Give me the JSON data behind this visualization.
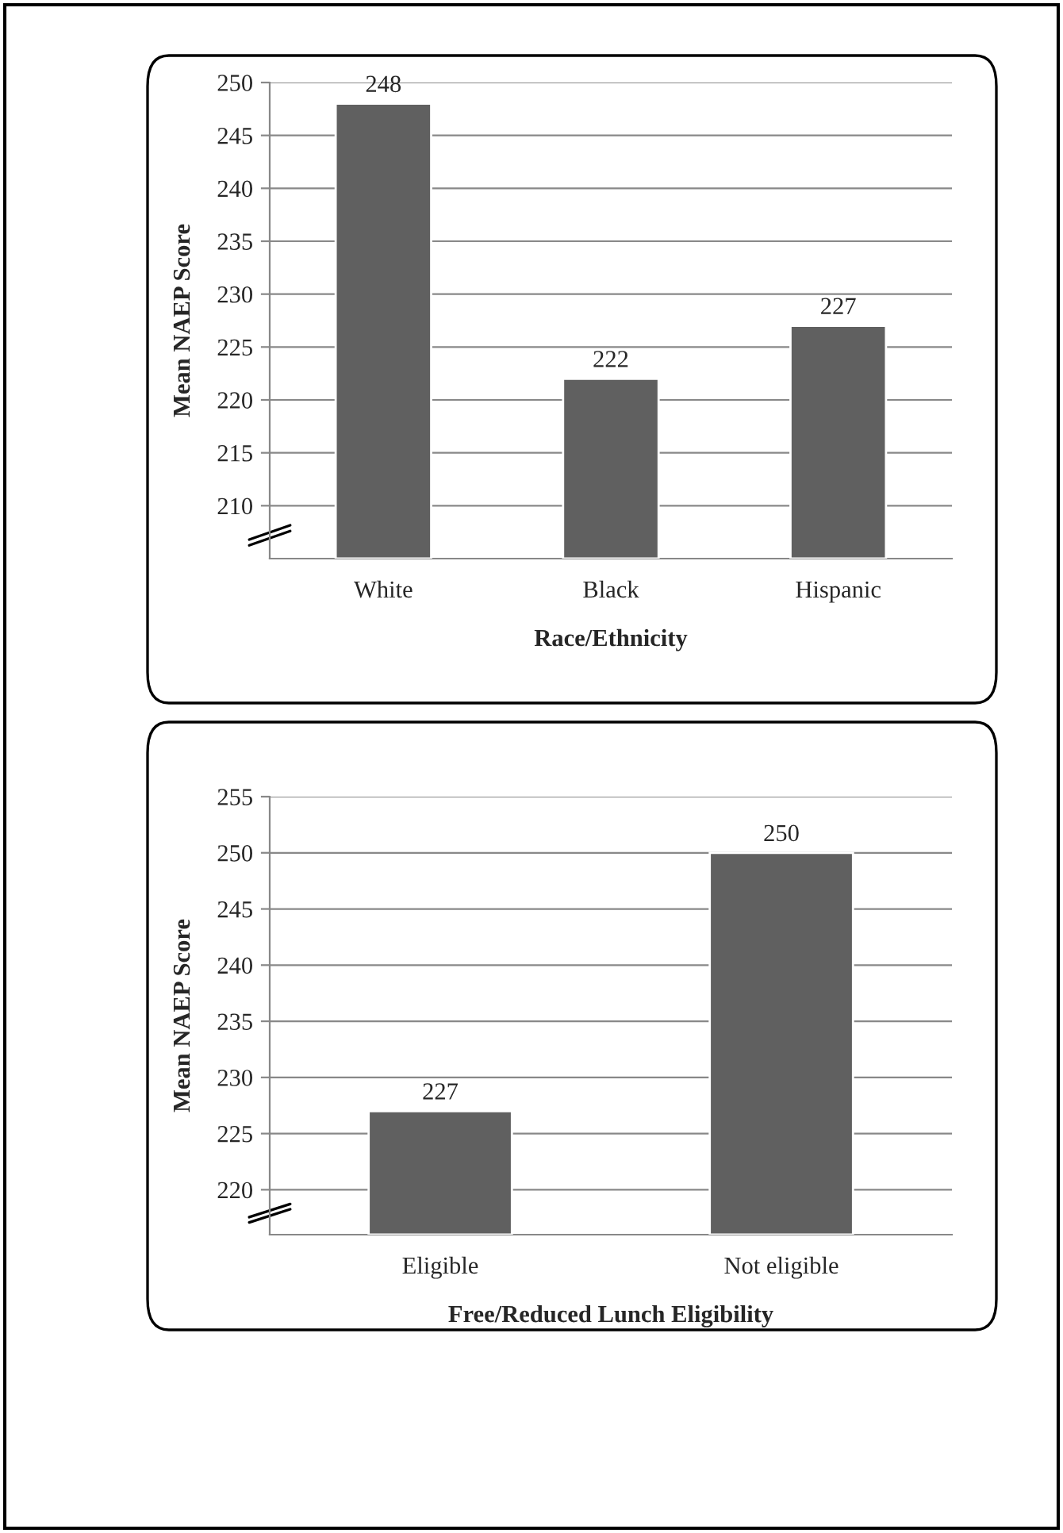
{
  "chart_data": [
    {
      "type": "bar",
      "xlabel": "Race/Ethnicity",
      "ylabel": "Mean NAEP Score",
      "categories": [
        "White",
        "Black",
        "Hispanic"
      ],
      "values": [
        248,
        222,
        227
      ],
      "color": "#606060",
      "ylim": [
        205,
        250
      ],
      "yticks": [
        210,
        215,
        220,
        225,
        230,
        235,
        240,
        245,
        250
      ],
      "grid": "y",
      "data_labels": true
    },
    {
      "type": "bar",
      "xlabel": "Free/Reduced Lunch Eligibility",
      "ylabel": "Mean NAEP Score",
      "categories": [
        "Eligible",
        "Not eligible"
      ],
      "values": [
        227,
        250
      ],
      "color": "#606060",
      "ylim": [
        216,
        255
      ],
      "yticks": [
        220,
        225,
        230,
        235,
        240,
        245,
        250,
        255
      ],
      "grid": "y",
      "data_labels": true
    }
  ]
}
